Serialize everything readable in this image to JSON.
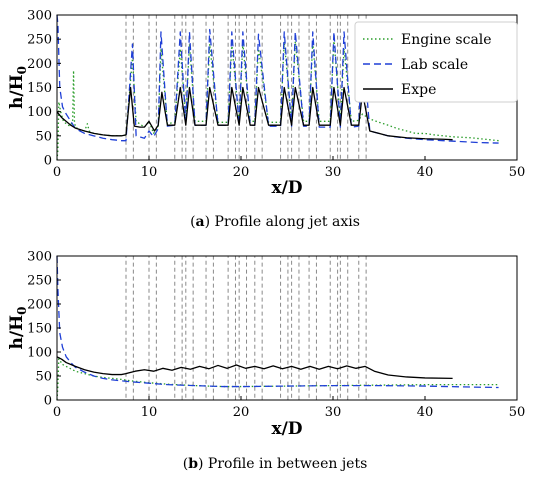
{
  "figure": {
    "caption_a_letter": "a",
    "caption_a_text": "Profile along jet axis",
    "caption_b_letter": "b",
    "caption_b_text": "Profile in between jets"
  },
  "chart_data": [
    {
      "type": "line",
      "panel": "a",
      "xlabel": "x/D",
      "ylabel": "h/H0",
      "xlim": [
        0,
        50
      ],
      "ylim": [
        0,
        300
      ],
      "xticks": [
        0,
        10,
        20,
        30,
        40,
        50
      ],
      "yticks": [
        0,
        50,
        100,
        150,
        200,
        250,
        300
      ],
      "legend_position": "top-right",
      "jet_boxes": [
        [
          7.5,
          8.3
        ],
        [
          10.0,
          10.8
        ],
        [
          12.8,
          13.6
        ],
        [
          14.0,
          14.8
        ],
        [
          16.2,
          17.0
        ],
        [
          18.6,
          19.4
        ],
        [
          19.8,
          20.6
        ],
        [
          21.5,
          22.3
        ],
        [
          24.3,
          25.1
        ],
        [
          25.5,
          26.3
        ],
        [
          27.4,
          28.2
        ],
        [
          29.7,
          30.5
        ],
        [
          30.8,
          31.6
        ],
        [
          32.8,
          33.6
        ]
      ],
      "series": [
        {
          "name": "Engine scale",
          "color": "#2a9d2a",
          "style": "dotted",
          "x": [
            0,
            0.1,
            0.2,
            0.4,
            0.7,
            1.0,
            1.4,
            1.7,
            1.8,
            1.9,
            2.0,
            2.5,
            3.0,
            3.3,
            3.5,
            3.7,
            4,
            5,
            6,
            7,
            7.5,
            8.2,
            8.6,
            9.5,
            10.0,
            10.5,
            11.0,
            11.3,
            12,
            12.8,
            13.4,
            14.0,
            14.4,
            15,
            16.2,
            16.6,
            17.5,
            18.6,
            19.0,
            19.8,
            20.2,
            21,
            21.5,
            21.9,
            23,
            24.3,
            24.7,
            25.5,
            25.9,
            26.8,
            27.4,
            27.8,
            28.5,
            29.7,
            30.1,
            30.8,
            31.2,
            32,
            32.8,
            33.2,
            34,
            35,
            36,
            37,
            38,
            39,
            40,
            41,
            42,
            43,
            44,
            45,
            46,
            47,
            48
          ],
          "y": [
            0,
            20,
            120,
            100,
            80,
            75,
            70,
            80,
            185,
            80,
            68,
            62,
            60,
            75,
            60,
            58,
            55,
            52,
            50,
            50,
            52,
            210,
            80,
            68,
            80,
            55,
            70,
            230,
            75,
            78,
            230,
            85,
            240,
            80,
            80,
            240,
            78,
            78,
            240,
            80,
            240,
            80,
            80,
            230,
            78,
            78,
            245,
            80,
            245,
            80,
            80,
            245,
            80,
            80,
            250,
            82,
            230,
            80,
            82,
            95,
            85,
            78,
            72,
            65,
            60,
            55,
            55,
            52,
            50,
            48,
            47,
            46,
            44,
            42,
            40
          ]
        },
        {
          "name": "Lab scale",
          "color": "#1f3fd6",
          "style": "dashed",
          "x": [
            0,
            0.1,
            0.3,
            0.6,
            1.0,
            1.5,
            2.0,
            3,
            4,
            5,
            6,
            7,
            7.5,
            8.2,
            8.6,
            9.5,
            10.0,
            10.5,
            11.0,
            11.3,
            12,
            12.8,
            13.4,
            14.0,
            14.4,
            15,
            16.2,
            16.6,
            17.5,
            18.6,
            19.0,
            19.8,
            20.2,
            21,
            21.5,
            21.9,
            23,
            24.3,
            24.7,
            25.5,
            25.9,
            26.8,
            27.4,
            27.8,
            28.5,
            29.7,
            30.1,
            30.8,
            31.2,
            32,
            32.8,
            33.2,
            34,
            36,
            38,
            40,
            42,
            44,
            46,
            48
          ],
          "y": [
            300,
            280,
            150,
            110,
            95,
            80,
            65,
            55,
            50,
            45,
            42,
            40,
            40,
            240,
            50,
            45,
            60,
            48,
            65,
            265,
            70,
            72,
            265,
            75,
            265,
            72,
            72,
            270,
            72,
            72,
            265,
            72,
            265,
            72,
            72,
            260,
            70,
            70,
            265,
            70,
            265,
            70,
            70,
            265,
            68,
            68,
            265,
            68,
            265,
            68,
            70,
            250,
            60,
            50,
            45,
            42,
            40,
            38,
            36,
            35
          ]
        },
        {
          "name": "Expe",
          "color": "#000000",
          "style": "solid",
          "x": [
            0,
            0.2,
            0.5,
            1,
            1.5,
            2,
            3,
            4,
            5,
            6,
            7,
            7.5,
            8.0,
            8.4,
            9,
            9.5,
            10.0,
            10.6,
            11.0,
            11.4,
            12,
            12.8,
            13.4,
            14.0,
            14.4,
            15,
            16.2,
            16.6,
            17.5,
            18.6,
            19.0,
            19.8,
            20.2,
            21,
            21.5,
            21.9,
            23,
            24.3,
            24.7,
            25.5,
            25.9,
            26.8,
            27.4,
            27.8,
            28.5,
            29.7,
            30.1,
            30.8,
            31.2,
            32,
            32.8,
            33.2,
            34,
            36,
            38,
            40,
            42,
            43
          ],
          "y": [
            100,
            95,
            88,
            80,
            72,
            66,
            60,
            55,
            52,
            50,
            50,
            52,
            150,
            70,
            68,
            68,
            80,
            60,
            72,
            140,
            72,
            72,
            150,
            72,
            150,
            72,
            72,
            150,
            72,
            72,
            150,
            72,
            150,
            72,
            72,
            150,
            72,
            72,
            150,
            72,
            150,
            72,
            72,
            150,
            72,
            72,
            150,
            72,
            150,
            72,
            72,
            140,
            60,
            50,
            46,
            44,
            43,
            42
          ]
        }
      ]
    },
    {
      "type": "line",
      "panel": "b",
      "xlabel": "x/D",
      "ylabel": "h/H0",
      "xlim": [
        0,
        50
      ],
      "ylim": [
        0,
        300
      ],
      "xticks": [
        0,
        10,
        20,
        30,
        40,
        50
      ],
      "yticks": [
        0,
        50,
        100,
        150,
        200,
        250,
        300
      ],
      "jet_boxes": [
        [
          7.5,
          8.3
        ],
        [
          10.0,
          10.8
        ],
        [
          12.8,
          13.6
        ],
        [
          14.0,
          14.8
        ],
        [
          16.2,
          17.0
        ],
        [
          18.6,
          19.4
        ],
        [
          19.8,
          20.6
        ],
        [
          21.5,
          22.3
        ],
        [
          24.3,
          25.1
        ],
        [
          25.5,
          26.3
        ],
        [
          27.4,
          28.2
        ],
        [
          29.7,
          30.5
        ],
        [
          30.8,
          31.6
        ],
        [
          32.8,
          33.6
        ]
      ],
      "series": [
        {
          "name": "Engine scale",
          "color": "#2a9d2a",
          "style": "dotted",
          "x": [
            0,
            0.1,
            0.2,
            0.5,
            1.0,
            1.5,
            2,
            3,
            4,
            5,
            6,
            7,
            8,
            10,
            12,
            15,
            18,
            20,
            25,
            30,
            35,
            40,
            45,
            48
          ],
          "y": [
            0,
            30,
            90,
            75,
            70,
            65,
            60,
            55,
            50,
            47,
            45,
            43,
            40,
            36,
            33,
            30,
            28,
            28,
            29,
            30,
            31,
            32,
            32,
            32
          ]
        },
        {
          "name": "Lab scale",
          "color": "#1f3fd6",
          "style": "dashed",
          "x": [
            0,
            0.1,
            0.3,
            0.6,
            1.0,
            1.5,
            2,
            3,
            4,
            5,
            6,
            7,
            8,
            10,
            12,
            15,
            18,
            20,
            25,
            30,
            35,
            40,
            45,
            48
          ],
          "y": [
            300,
            230,
            140,
            110,
            90,
            78,
            68,
            58,
            50,
            45,
            42,
            40,
            38,
            35,
            32,
            30,
            28,
            28,
            29,
            30,
            30,
            29,
            27,
            26
          ]
        },
        {
          "name": "Expe",
          "color": "#000000",
          "style": "solid",
          "x": [
            0,
            0.5,
            1,
            2,
            3,
            4,
            5,
            6,
            7,
            7.5,
            8.5,
            9.5,
            10.5,
            11.5,
            12.5,
            13.5,
            14.5,
            15.5,
            16.5,
            17.5,
            18.5,
            19.5,
            20.5,
            21.5,
            22.5,
            23.5,
            24.5,
            25.5,
            26.5,
            27.5,
            28.5,
            29.5,
            30.5,
            31.5,
            32.5,
            33.5,
            34.5,
            36,
            38,
            40,
            43
          ],
          "y": [
            90,
            85,
            78,
            70,
            63,
            58,
            55,
            53,
            53,
            55,
            60,
            63,
            60,
            66,
            62,
            68,
            64,
            70,
            65,
            72,
            66,
            73,
            66,
            70,
            65,
            71,
            65,
            70,
            64,
            70,
            64,
            70,
            65,
            71,
            66,
            70,
            60,
            52,
            48,
            46,
            45
          ]
        }
      ]
    }
  ]
}
